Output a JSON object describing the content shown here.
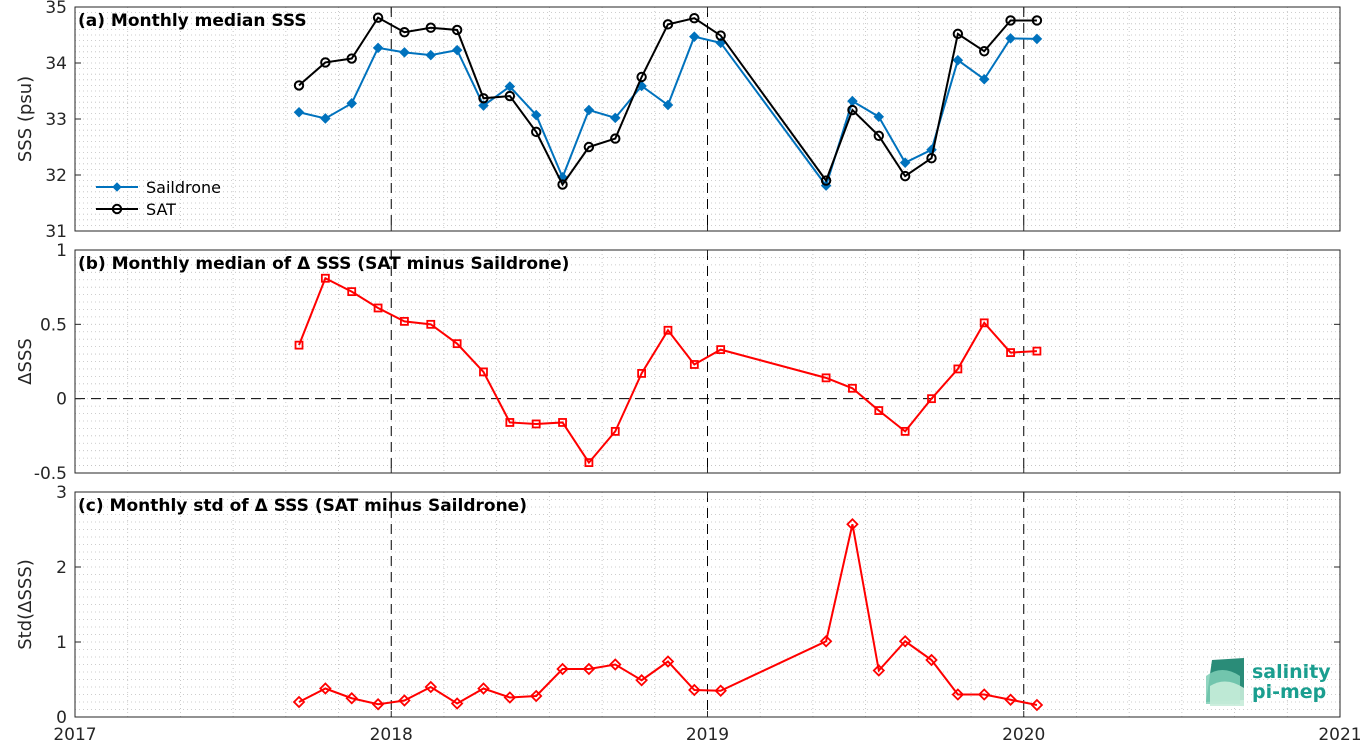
{
  "chart_data": [
    {
      "type": "line",
      "title": "(a) Monthly median SSS",
      "ylabel": "SSS (psu)",
      "ylim": [
        31,
        35
      ],
      "yticks": [
        "31",
        "32",
        "33",
        "34",
        "35"
      ],
      "xlim": [
        "2017-01-01",
        "2021-01-01"
      ],
      "xticks": [
        "2017",
        "2018",
        "2019",
        "2020",
        "2021"
      ],
      "grid": true,
      "legend_position": "bottom-left",
      "series": [
        {
          "name": "Saildrone",
          "color": "#0072BD",
          "marker": "diamond",
          "x": [
            "2017-09",
            "2017-10",
            "2017-11",
            "2017-12",
            "2018-01",
            "2018-02",
            "2018-03",
            "2018-04",
            "2018-05",
            "2018-06",
            "2018-07",
            "2018-08",
            "2018-09",
            "2018-10",
            "2018-11",
            "2018-12",
            "2019-01",
            "2019-05",
            "2019-06",
            "2019-07",
            "2019-08",
            "2019-09",
            "2019-10",
            "2019-11",
            "2019-12",
            "2020-01"
          ],
          "values": [
            33.12,
            33.01,
            33.28,
            34.27,
            34.19,
            34.14,
            34.23,
            33.24,
            33.58,
            33.07,
            31.96,
            33.16,
            33.02,
            33.59,
            33.25,
            34.47,
            34.36,
            31.81,
            33.32,
            33.04,
            32.22,
            32.45,
            34.05,
            33.71,
            34.44,
            34.43
          ]
        },
        {
          "name": "SAT",
          "color": "#000000",
          "marker": "circle",
          "x": [
            "2017-09",
            "2017-10",
            "2017-11",
            "2017-12",
            "2018-01",
            "2018-02",
            "2018-03",
            "2018-04",
            "2018-05",
            "2018-06",
            "2018-07",
            "2018-08",
            "2018-09",
            "2018-10",
            "2018-11",
            "2018-12",
            "2019-01",
            "2019-05",
            "2019-06",
            "2019-07",
            "2019-08",
            "2019-09",
            "2019-10",
            "2019-11",
            "2019-12",
            "2020-01"
          ],
          "values": [
            33.6,
            34.01,
            34.08,
            34.81,
            34.55,
            34.63,
            34.59,
            33.37,
            33.41,
            32.77,
            31.83,
            32.5,
            32.65,
            33.75,
            34.69,
            34.8,
            34.49,
            31.9,
            33.16,
            32.7,
            31.98,
            32.3,
            34.52,
            34.21,
            34.76,
            34.76
          ]
        }
      ]
    },
    {
      "type": "line",
      "title": "(b) Monthly median of Δ SSS (SAT minus Saildrone)",
      "ylabel": "ΔSSS",
      "ylim": [
        -0.5,
        1
      ],
      "yticks": [
        "-0.5",
        "0",
        "0.5",
        "1"
      ],
      "xlim": [
        "2017-01-01",
        "2021-01-01"
      ],
      "grid": true,
      "zero_line": true,
      "series": [
        {
          "color": "#FF0000",
          "marker": "square",
          "x": [
            "2017-09",
            "2017-10",
            "2017-11",
            "2017-12",
            "2018-01",
            "2018-02",
            "2018-03",
            "2018-04",
            "2018-05",
            "2018-06",
            "2018-07",
            "2018-08",
            "2018-09",
            "2018-10",
            "2018-11",
            "2018-12",
            "2019-01",
            "2019-05",
            "2019-06",
            "2019-07",
            "2019-08",
            "2019-09",
            "2019-10",
            "2019-11",
            "2019-12",
            "2020-01"
          ],
          "values": [
            0.36,
            0.81,
            0.72,
            0.61,
            0.52,
            0.5,
            0.37,
            0.18,
            -0.16,
            -0.17,
            -0.16,
            -0.43,
            -0.22,
            0.17,
            0.46,
            0.23,
            0.33,
            0.14,
            0.07,
            -0.08,
            -0.22,
            0.0,
            0.2,
            0.51,
            0.31,
            0.32
          ]
        }
      ]
    },
    {
      "type": "line",
      "title": "(c) Monthly std of Δ SSS (SAT minus Saildrone)",
      "ylabel": "Std(ΔSSS)",
      "ylim": [
        0,
        3
      ],
      "yticks": [
        "0",
        "1",
        "2",
        "3"
      ],
      "xlim": [
        "2017-01-01",
        "2021-01-01"
      ],
      "xticks": [
        "2017",
        "2018",
        "2019",
        "2020",
        "2021"
      ],
      "grid": true,
      "series": [
        {
          "color": "#FF0000",
          "marker": "diamond",
          "x": [
            "2017-09",
            "2017-10",
            "2017-11",
            "2017-12",
            "2018-01",
            "2018-02",
            "2018-03",
            "2018-04",
            "2018-05",
            "2018-06",
            "2018-07",
            "2018-08",
            "2018-09",
            "2018-10",
            "2018-11",
            "2018-12",
            "2019-01",
            "2019-05",
            "2019-06",
            "2019-07",
            "2019-08",
            "2019-09",
            "2019-10",
            "2019-11",
            "2019-12",
            "2020-01"
          ],
          "values": [
            0.2,
            0.38,
            0.25,
            0.17,
            0.22,
            0.4,
            0.18,
            0.38,
            0.26,
            0.28,
            0.64,
            0.64,
            0.7,
            0.49,
            0.74,
            0.36,
            0.35,
            1.01,
            2.57,
            0.62,
            1.01,
            0.76,
            0.3,
            0.3,
            0.23,
            0.16
          ]
        }
      ]
    }
  ],
  "logo": {
    "line1": "salinity",
    "line2": "pi-mep"
  }
}
